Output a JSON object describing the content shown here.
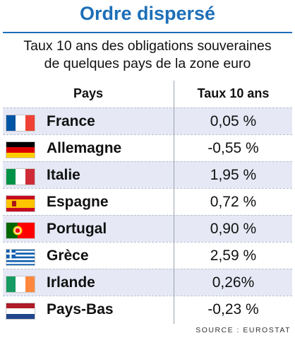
{
  "title": "Ordre dispersé",
  "subtitle_line1": "Taux 10 ans des obligations souveraines",
  "subtitle_line2": "de quelques pays de la zone euro",
  "source": "SOURCE : EUROSTAT",
  "chart_data": {
    "type": "table",
    "title": "Ordre dispersé",
    "subtitle": "Taux 10 ans des obligations souveraines de quelques pays de la zone euro",
    "columns": [
      "Pays",
      "Taux 10 ans"
    ],
    "rows": [
      {
        "country": "France",
        "value": 0.05,
        "label": "0,05 %",
        "flag": "flag-france"
      },
      {
        "country": "Allemagne",
        "value": -0.55,
        "label": "-0,55 %",
        "flag": "flag-germany"
      },
      {
        "country": "Italie",
        "value": 1.95,
        "label": "1,95 %",
        "flag": "flag-italy"
      },
      {
        "country": "Espagne",
        "value": 0.72,
        "label": "0,72 %",
        "flag": "flag-spain"
      },
      {
        "country": "Portugal",
        "value": 0.9,
        "label": "0,90 %",
        "flag": "flag-portugal"
      },
      {
        "country": "Grèce",
        "value": 2.59,
        "label": "2,59 %",
        "flag": "flag-greece"
      },
      {
        "country": "Irlande",
        "value": 0.26,
        "label": "0,26%",
        "flag": "flag-ireland"
      },
      {
        "country": "Pays-Bas",
        "value": -0.23,
        "label": "-0,23 %",
        "flag": "flag-netherlands"
      }
    ],
    "source": "SOURCE : EUROSTAT",
    "colors": {
      "accent": "#1d6fb8",
      "row_alt": "#e6e9f5"
    }
  }
}
